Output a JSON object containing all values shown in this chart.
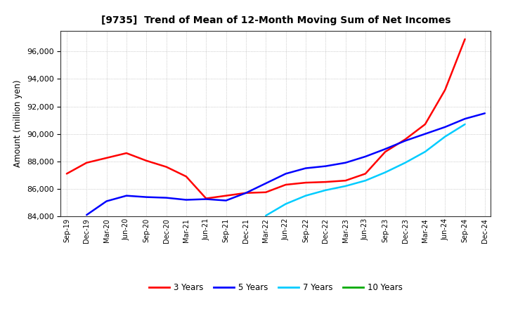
{
  "title": "[9735]  Trend of Mean of 12-Month Moving Sum of Net Incomes",
  "ylabel": "Amount (million yen)",
  "ylim": [
    84000,
    97500
  ],
  "yticks": [
    84000,
    86000,
    88000,
    90000,
    92000,
    94000,
    96000
  ],
  "background_color": "#ffffff",
  "grid_color": "#aaaaaa",
  "x_labels": [
    "Sep-19",
    "Dec-19",
    "Mar-20",
    "Jun-20",
    "Sep-20",
    "Dec-20",
    "Mar-21",
    "Jun-21",
    "Sep-21",
    "Dec-21",
    "Mar-22",
    "Jun-22",
    "Sep-22",
    "Dec-22",
    "Mar-23",
    "Jun-23",
    "Sep-23",
    "Dec-23",
    "Mar-24",
    "Jun-24",
    "Sep-24",
    "Dec-24"
  ],
  "series": {
    "3 Years": {
      "color": "#ff0000",
      "data_x": [
        0,
        1,
        2,
        3,
        4,
        5,
        6,
        7,
        8,
        9,
        10,
        11,
        12,
        13,
        14,
        15,
        16,
        17,
        18,
        19,
        20
      ],
      "data_y": [
        87100,
        87900,
        88250,
        88600,
        88050,
        87600,
        86900,
        85300,
        85500,
        85700,
        85750,
        86300,
        86450,
        86500,
        86600,
        87100,
        88700,
        89600,
        90700,
        93200,
        96900
      ]
    },
    "5 Years": {
      "color": "#0000ff",
      "data_x": [
        1,
        2,
        3,
        4,
        5,
        6,
        7,
        8,
        9,
        10,
        11,
        12,
        13,
        14,
        15,
        16,
        17,
        18,
        19,
        20,
        21
      ],
      "data_y": [
        84100,
        85100,
        85500,
        85400,
        85350,
        85200,
        85250,
        85150,
        85700,
        86400,
        87100,
        87500,
        87650,
        87900,
        88350,
        88900,
        89500,
        90000,
        90500,
        91100,
        91500
      ]
    },
    "7 Years": {
      "color": "#00ccff",
      "data_x": [
        10,
        11,
        12,
        13,
        14,
        15,
        16,
        17,
        18,
        19,
        20
      ],
      "data_y": [
        84050,
        84900,
        85500,
        85900,
        86200,
        86600,
        87200,
        87900,
        88700,
        89800,
        90700
      ]
    },
    "10 Years": {
      "color": "#00aa00",
      "data_x": [],
      "data_y": []
    }
  },
  "legend_entries": [
    "3 Years",
    "5 Years",
    "7 Years",
    "10 Years"
  ],
  "legend_colors": [
    "#ff0000",
    "#0000ff",
    "#00ccff",
    "#00aa00"
  ]
}
